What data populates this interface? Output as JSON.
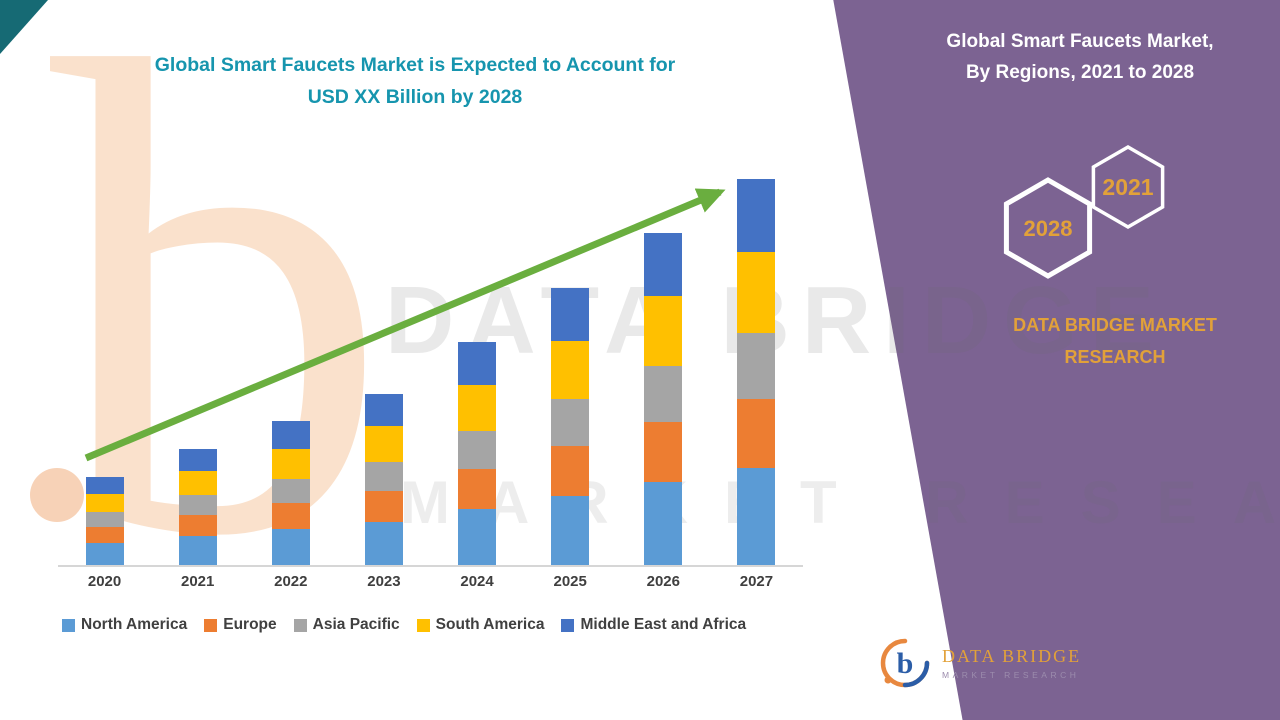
{
  "title": {
    "line1": "Global Smart Faucets Market is Expected to Account for",
    "line2": "USD XX Billion by 2028"
  },
  "side_panel": {
    "heading_line1": "Global Smart Faucets Market,",
    "heading_line2": "By Regions, 2021 to 2028",
    "hexagon_years": {
      "back": "2028",
      "front": "2021"
    },
    "brand_line1": "DATA BRIDGE MARKET",
    "brand_line2": "RESEARCH",
    "logo": {
      "name": "DATA BRIDGE",
      "tagline": "MARKET RESEARCH"
    }
  },
  "watermark": {
    "big_letter": "b",
    "line1": "DATA BRIDGE",
    "line2": "MARKET RESEARCH"
  },
  "colors": {
    "panel_purple": "#7C6392",
    "corner_teal": "#166A74",
    "title_teal": "#1695AE",
    "gold": "#E2A139",
    "arrow_green": "#6AAE3F"
  },
  "chart_data": {
    "type": "bar",
    "stacked": true,
    "title": "Global Smart Faucets Market is Expected to Account for USD XX Billion by 2028",
    "categories": [
      "2020",
      "2021",
      "2022",
      "2023",
      "2024",
      "2025",
      "2026",
      "2027"
    ],
    "series": [
      {
        "name": "North America",
        "color": "#5B9BD5",
        "values": [
          5.7,
          7.5,
          9.3,
          11.1,
          14.4,
          17.9,
          21.5,
          25.0
        ]
      },
      {
        "name": "Europe",
        "color": "#ED7D31",
        "values": [
          4.1,
          5.4,
          6.7,
          8.0,
          10.4,
          12.9,
          15.5,
          18.0
        ]
      },
      {
        "name": "Asia Pacific",
        "color": "#A5A5A5",
        "values": [
          3.9,
          5.1,
          6.3,
          7.5,
          9.8,
          12.2,
          14.6,
          17.0
        ]
      },
      {
        "name": "South America",
        "color": "#FFC000",
        "values": [
          4.8,
          6.3,
          7.8,
          9.3,
          12.1,
          15.1,
          18.0,
          21.0
        ]
      },
      {
        "name": "Middle East and Africa",
        "color": "#4472C4",
        "values": [
          4.3,
          5.7,
          7.1,
          8.4,
          10.9,
          13.6,
          16.3,
          19.0
        ]
      }
    ],
    "values_estimated": true,
    "ylim": [
      0,
      110
    ],
    "y_axis_visible": false,
    "gridlines": false,
    "legend_position": "bottom",
    "trend_arrow": true
  }
}
